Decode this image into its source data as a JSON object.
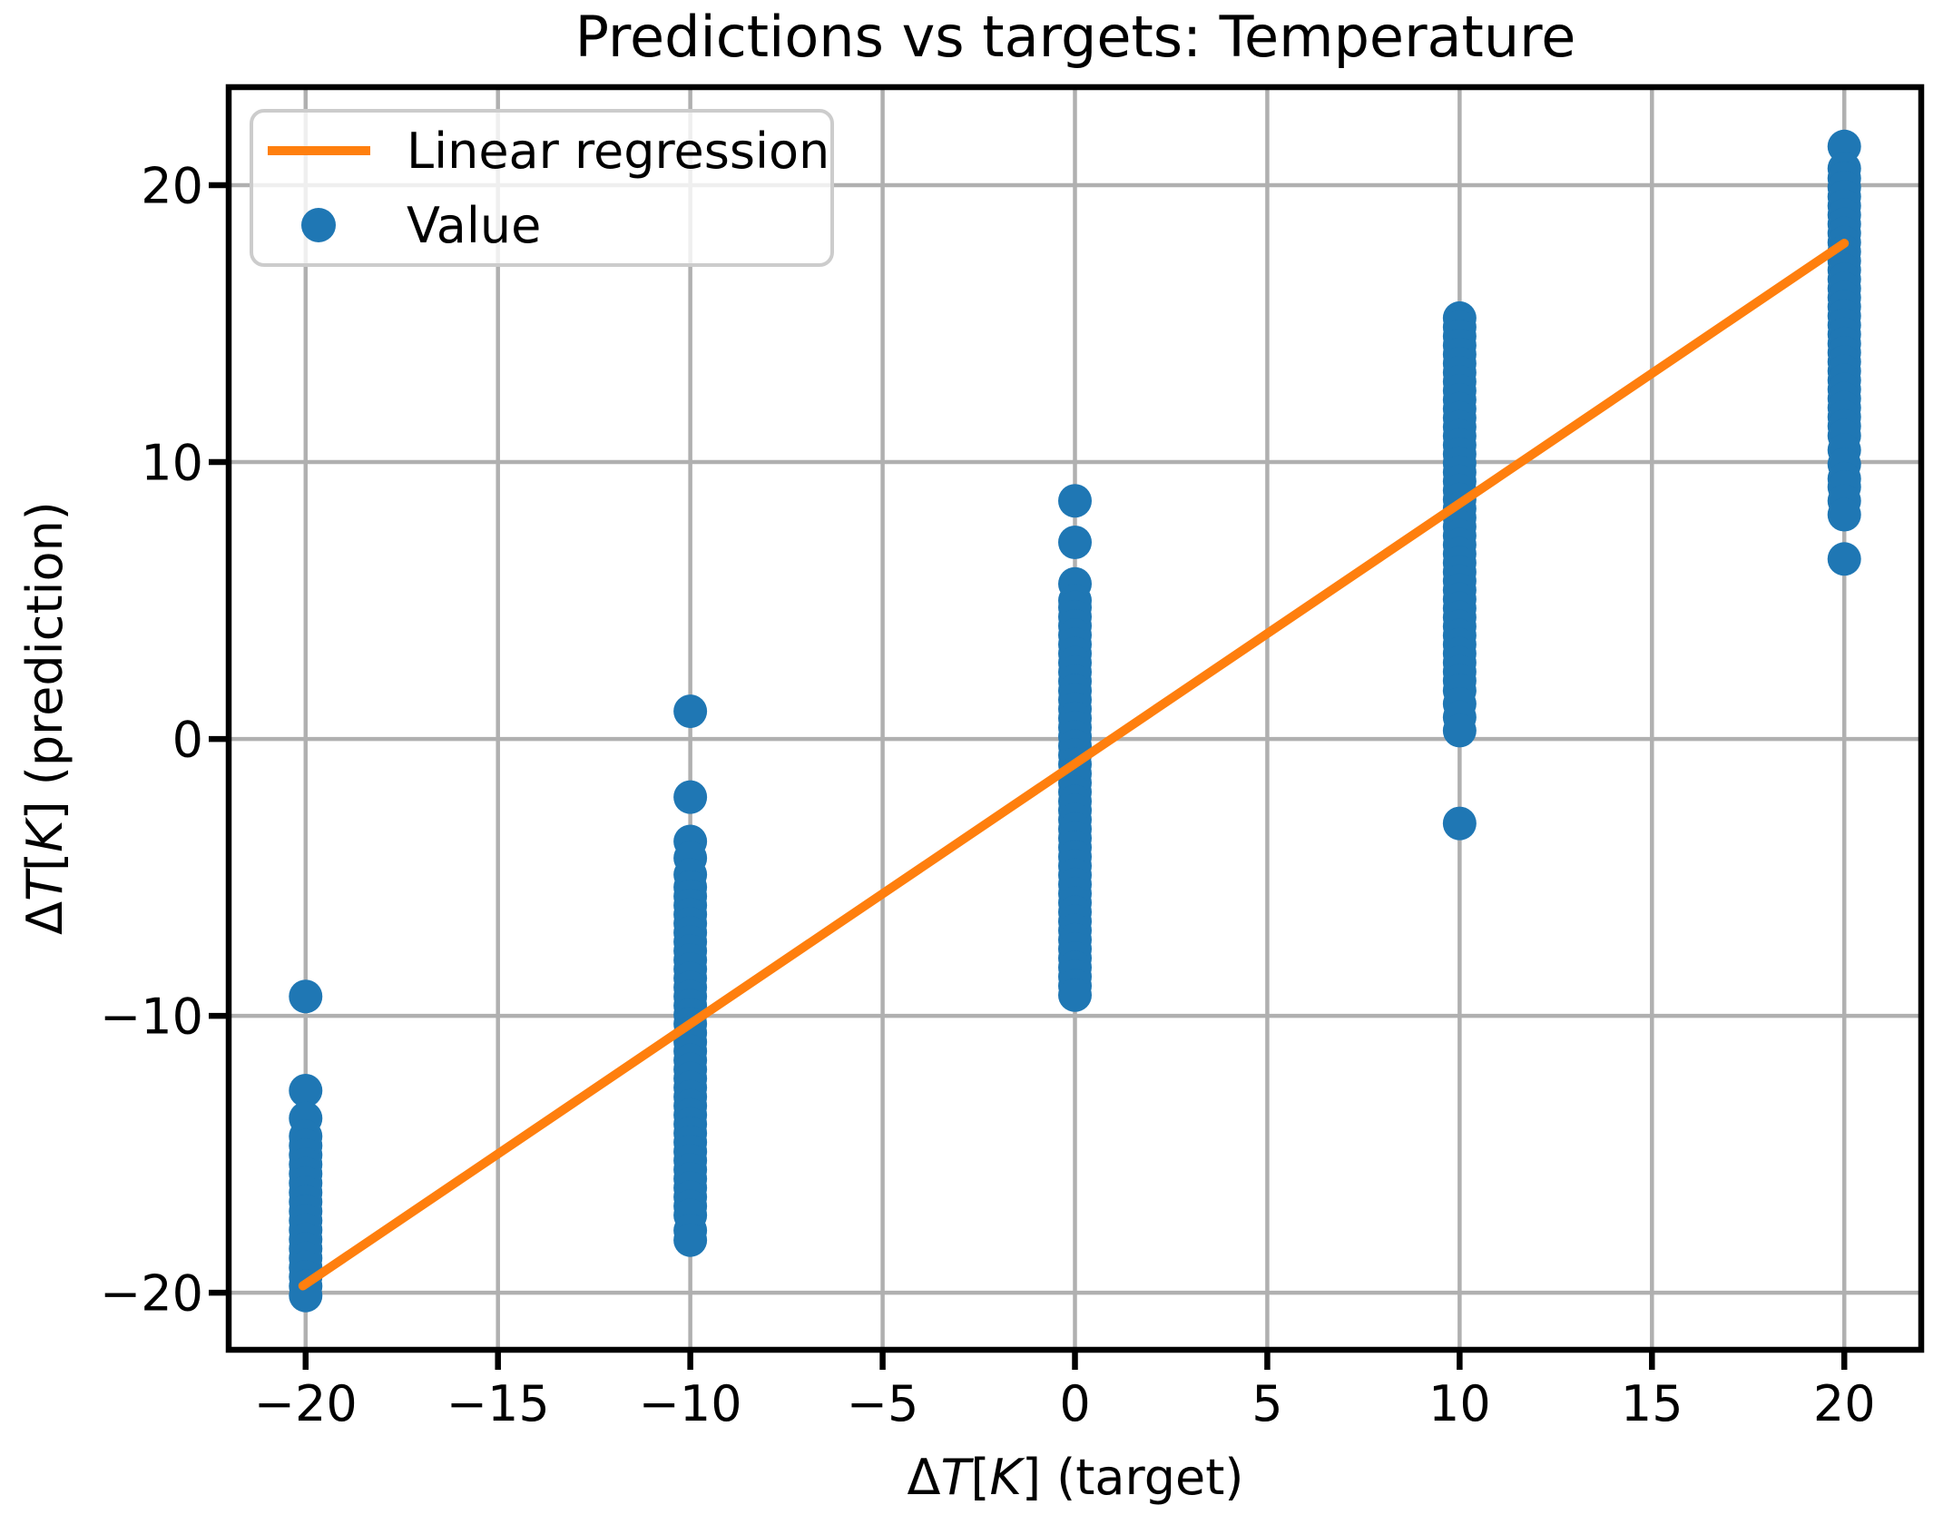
{
  "chart_data": {
    "type": "scatter",
    "title": "Predictions vs targets: Temperature",
    "xlabel": "ΔT[K] (target)",
    "ylabel": "ΔT[K] (prediction)",
    "xlabel_parts": [
      {
        "t": "Δ",
        "i": false
      },
      {
        "t": "T",
        "i": true
      },
      {
        "t": "[",
        "i": false
      },
      {
        "t": "K",
        "i": true
      },
      {
        "t": "] (target)",
        "i": false
      }
    ],
    "ylabel_parts": [
      {
        "t": "Δ",
        "i": false
      },
      {
        "t": "T",
        "i": true
      },
      {
        "t": "[",
        "i": false
      },
      {
        "t": "K",
        "i": true
      },
      {
        "t": "] (prediction)",
        "i": false
      }
    ],
    "xlim": [
      -22.0,
      22.0
    ],
    "ylim": [
      -22.06,
      23.54
    ],
    "x_ticks": [
      -20,
      -15,
      -10,
      -5,
      0,
      5,
      10,
      15,
      20
    ],
    "y_ticks": [
      -20,
      -10,
      0,
      10,
      20
    ],
    "grid": true,
    "grid_color": "#b0b0b0",
    "legend_position": "upper left",
    "series": [
      {
        "name": "Linear regression",
        "type": "line",
        "color": "#ff7f0e",
        "points": [
          [
            -20.07,
            -19.75
          ],
          [
            20.0,
            17.9
          ]
        ]
      },
      {
        "name": "Value",
        "type": "scatter",
        "color": "#1f77b4",
        "marker": "circle",
        "clusters": [
          {
            "x": -20,
            "points_y": [
              {
                "y": -9.3
              },
              {
                "y": -12.7
              },
              {
                "y": -13.7
              },
              {
                "from": -14.35,
                "to": -20.1,
                "step": 0.33
              }
            ]
          },
          {
            "x": -10,
            "points_y": [
              {
                "y": 1.0
              },
              {
                "y": -2.1
              },
              {
                "from": -3.7,
                "to": -4.9,
                "step": 0.6
              },
              {
                "from": -5.35,
                "to": -17.2,
                "step": 0.33
              },
              {
                "from": -17.75,
                "to": -18.1,
                "step": 0.35
              }
            ]
          },
          {
            "x": 0,
            "points_y": [
              {
                "y": 8.6
              },
              {
                "y": 7.1
              },
              {
                "from": 5.6,
                "to": 5.0,
                "step": 0.6
              },
              {
                "from": 4.75,
                "to": -9.25,
                "step": 0.33
              }
            ]
          },
          {
            "x": 10,
            "points_y": [
              {
                "from": 15.2,
                "to": 2.1,
                "step": 0.33
              },
              {
                "from": 1.75,
                "to": 0.3,
                "step": 0.48
              },
              {
                "y": -3.05
              }
            ]
          },
          {
            "x": 20,
            "points_y": [
              {
                "from": 21.4,
                "to": 20.6,
                "step": 0.8
              },
              {
                "from": 20.25,
                "to": 11.3,
                "step": 0.33
              },
              {
                "from": 10.95,
                "to": 9.4,
                "step": 0.52
              },
              {
                "from": 9.1,
                "to": 8.1,
                "step": 0.5
              },
              {
                "y": 6.5
              }
            ]
          }
        ]
      }
    ]
  }
}
